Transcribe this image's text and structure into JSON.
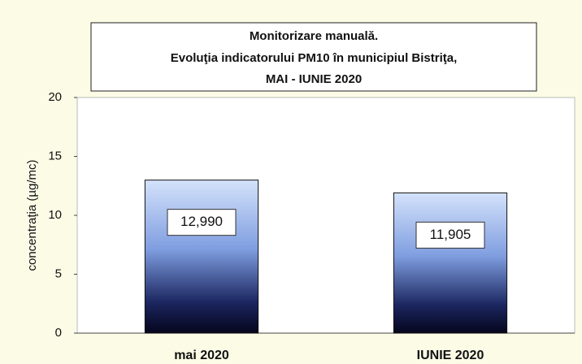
{
  "chart_data": {
    "type": "bar",
    "title": [
      "Monitorizare manuală.",
      "Evoluţia indicatorului PM10 în municipiul Bistriţa,",
      "MAI - IUNIE  2020"
    ],
    "y_label": "concentraţia (µg/mc)",
    "categories": [
      "mai 2020",
      "IUNIE 2020"
    ],
    "values": [
      12.99,
      11.905
    ],
    "value_labels": [
      "12,990",
      "11,905"
    ],
    "ylim": [
      0,
      20
    ],
    "yticks": [
      0,
      5,
      10,
      15,
      20
    ],
    "grid": false
  }
}
